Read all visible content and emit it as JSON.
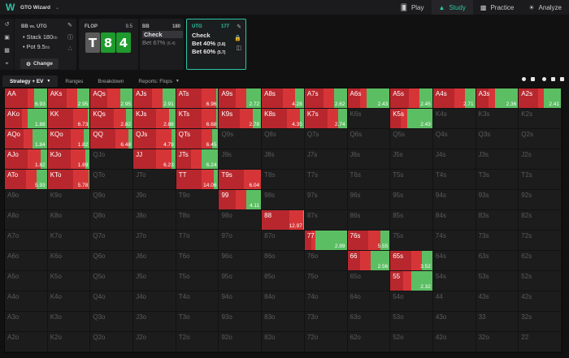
{
  "app": {
    "title": "GTO Wizard",
    "logo": "W"
  },
  "nav": [
    {
      "label": "Play",
      "icon": "cards-icon",
      "active": false
    },
    {
      "label": "Study",
      "icon": "graduation-cap-icon",
      "active": true
    },
    {
      "label": "Practice",
      "icon": "gamepad-icon",
      "active": false
    },
    {
      "label": "Analyze",
      "icon": "lightbulb-icon",
      "active": false
    }
  ],
  "config": {
    "matchup": "BB",
    "vs": "vs.",
    "opponent": "UTG",
    "stack_label": "Stack",
    "stack_value": "180",
    "pot_label": "Pot",
    "pot_value": "9.5",
    "unit": "bb",
    "change_label": "Change"
  },
  "flop": {
    "label": "FLOP",
    "pot": "9.5",
    "cards": [
      {
        "rank": "T",
        "suit": "spade"
      },
      {
        "rank": "8",
        "suit": "club"
      },
      {
        "rank": "4",
        "suit": "club"
      }
    ]
  },
  "bb_panel": {
    "player": "BB",
    "stack": "180",
    "actions": [
      {
        "label": "Check",
        "size": "",
        "selected": true
      },
      {
        "label": "Bet 67%",
        "size": "(6.4)",
        "selected": false
      }
    ]
  },
  "utg_panel": {
    "player": "UTG",
    "stack": "177",
    "actions": [
      {
        "label": "Check",
        "size": ""
      },
      {
        "label": "Bet 40%",
        "size": "(3.8)"
      },
      {
        "label": "Bet 60%",
        "size": "(5.7)"
      }
    ]
  },
  "tabs": [
    {
      "label": "Strategy + EV",
      "active": true,
      "dropdown": true
    },
    {
      "label": "Ranges",
      "active": false,
      "dropdown": false
    },
    {
      "label": "Breakdown",
      "active": false,
      "dropdown": false
    },
    {
      "label": "Reports: Flops",
      "active": false,
      "dropdown": true
    }
  ],
  "colors": {
    "accent": "#2ec4a6",
    "bet60": "#b8272d",
    "bet40": "#d63538",
    "check": "#5cbe63"
  },
  "ranks": [
    "A",
    "K",
    "Q",
    "J",
    "T",
    "9",
    "8",
    "7",
    "6",
    "5",
    "4",
    "3",
    "2"
  ],
  "strategy": {
    "AA": {
      "b60": 55,
      "b40": 15,
      "chk": 30,
      "ev": "6.93"
    },
    "AKs": {
      "b60": 45,
      "b40": 25,
      "chk": 30,
      "ev": "2.95"
    },
    "AQs": {
      "b60": 40,
      "b40": 30,
      "chk": 30,
      "ev": "2.95"
    },
    "AJs": {
      "b60": 45,
      "b40": 25,
      "chk": 30,
      "ev": "2.91"
    },
    "ATs": {
      "b60": 60,
      "b40": 35,
      "chk": 5,
      "ev": "6.96"
    },
    "A9s": {
      "b60": 40,
      "b40": 25,
      "chk": 35,
      "ev": "2.72"
    },
    "A8s": {
      "b60": 50,
      "b40": 30,
      "chk": 20,
      "ev": "4.28"
    },
    "A7s": {
      "b60": 45,
      "b40": 25,
      "chk": 30,
      "ev": "2.62"
    },
    "A6s": {
      "b60": 30,
      "b40": 15,
      "chk": 55,
      "ev": "2.43"
    },
    "A5s": {
      "b60": 45,
      "b40": 25,
      "chk": 30,
      "ev": "2.45"
    },
    "A4s": {
      "b60": 50,
      "b40": 25,
      "chk": 25,
      "ev": "2.71"
    },
    "A3s": {
      "b60": 30,
      "b40": 15,
      "chk": 55,
      "ev": "2.36"
    },
    "A2s": {
      "b60": 45,
      "b40": 15,
      "chk": 40,
      "ev": "2.41"
    },
    "AKo": {
      "b60": 40,
      "b40": 15,
      "chk": 45,
      "ev": "1.88"
    },
    "KK": {
      "b60": 60,
      "b40": 35,
      "chk": 5,
      "ev": "6.73"
    },
    "KQs": {
      "b60": 55,
      "b40": 30,
      "chk": 15,
      "ev": "2.82"
    },
    "KJs": {
      "b60": 55,
      "b40": 30,
      "chk": 15,
      "ev": "2.88"
    },
    "KTs": {
      "b60": 60,
      "b40": 35,
      "chk": 5,
      "ev": "6.68"
    },
    "K9s": {
      "b60": 50,
      "b40": 30,
      "chk": 20,
      "ev": "2.78"
    },
    "K8s": {
      "b60": 60,
      "b40": 30,
      "chk": 10,
      "ev": "4.35"
    },
    "K7s": {
      "b60": 55,
      "b40": 25,
      "chk": 20,
      "ev": "2.74"
    },
    "K5s": {
      "b60": 25,
      "b40": 15,
      "chk": 60,
      "ev": "2.43"
    },
    "AQo": {
      "b60": 45,
      "b40": 20,
      "chk": 35,
      "ev": "1.84"
    },
    "KQo": {
      "b60": 55,
      "b40": 30,
      "chk": 15,
      "ev": "1.82"
    },
    "QQ": {
      "b60": 60,
      "b40": 30,
      "chk": 10,
      "ev": "6.48"
    },
    "QJs": {
      "b60": 55,
      "b40": 35,
      "chk": 10,
      "ev": "4.79"
    },
    "QTs": {
      "b60": 60,
      "b40": 25,
      "chk": 15,
      "ev": "6.45"
    },
    "AJo": {
      "b60": 55,
      "b40": 30,
      "chk": 15,
      "ev": "1.82"
    },
    "KJo": {
      "b60": 55,
      "b40": 35,
      "chk": 10,
      "ev": "1.89"
    },
    "JJ": {
      "b60": 55,
      "b40": 35,
      "chk": 10,
      "ev": "6.23"
    },
    "JTs": {
      "b60": 35,
      "b40": 25,
      "chk": 40,
      "ev": "6.24"
    },
    "ATo": {
      "b60": 50,
      "b40": 25,
      "chk": 25,
      "ev": "5.93"
    },
    "KTo": {
      "b60": 60,
      "b40": 38,
      "chk": 2,
      "ev": "5.78"
    },
    "TT": {
      "b60": 60,
      "b40": 30,
      "chk": 10,
      "ev": "14.06"
    },
    "T9s": {
      "b60": 60,
      "b40": 40,
      "chk": 0,
      "ev": "6.04"
    },
    "99": {
      "b60": 40,
      "b40": 25,
      "chk": 35,
      "ev": "4.11"
    },
    "88": {
      "b60": 65,
      "b40": 33,
      "chk": 2,
      "ev": "12.97"
    },
    "77": {
      "b60": 15,
      "b40": 10,
      "chk": 75,
      "ev": "2.99"
    },
    "76s": {
      "b60": 50,
      "b40": 28,
      "chk": 22,
      "ev": "5.55"
    },
    "66": {
      "b60": 30,
      "b40": 25,
      "chk": 45,
      "ev": "2.56"
    },
    "65s": {
      "b60": 50,
      "b40": 25,
      "chk": 25,
      "ev": "3.52"
    },
    "55": {
      "b60": 30,
      "b40": 20,
      "chk": 50,
      "ev": "2.32"
    }
  }
}
